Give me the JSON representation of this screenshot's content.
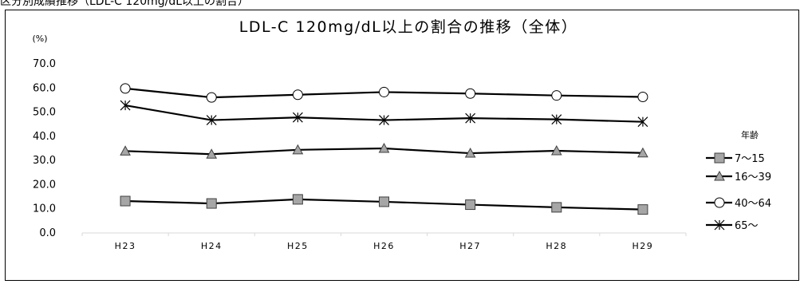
{
  "header_fragment": "区分別成績推移（LDL-C 120mg/dL以上の割合）",
  "chart_data": {
    "type": "line",
    "title": "LDL-C 120mg/dL以上の割合の推移（全体）",
    "ylabel": "(%)",
    "xlabel": "",
    "categories": [
      "H23",
      "H24",
      "H25",
      "H26",
      "H27",
      "H28",
      "H29"
    ],
    "ylim": [
      0,
      70
    ],
    "yticks": [
      "0.0",
      "10.0",
      "20.0",
      "30.0",
      "40.0",
      "50.0",
      "60.0",
      "70.0"
    ],
    "grid": "none",
    "legend_title": "年齢",
    "legend_position": "right",
    "series": [
      {
        "name": "7～15",
        "marker": "square",
        "color": "#a6a6a6",
        "values": [
          13.2,
          12.2,
          13.9,
          12.9,
          11.7,
          10.6,
          9.7
        ]
      },
      {
        "name": "16～39",
        "marker": "triangle",
        "color": "#a6a6a6",
        "values": [
          33.9,
          32.6,
          34.4,
          35.0,
          33.0,
          34.0,
          33.1
        ]
      },
      {
        "name": "40～64",
        "marker": "circle",
        "color": "#ffffff",
        "values": [
          59.8,
          56.1,
          57.2,
          58.3,
          57.7,
          56.9,
          56.3
        ]
      },
      {
        "name": "65～",
        "marker": "asterisk",
        "color": "#000000",
        "values": [
          52.8,
          46.7,
          47.8,
          46.7,
          47.5,
          47.0,
          46.0
        ]
      }
    ]
  }
}
